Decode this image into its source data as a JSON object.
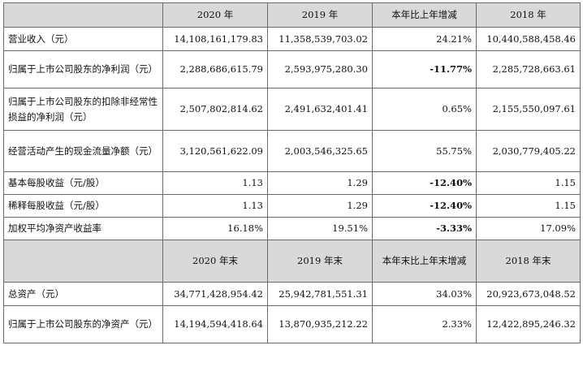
{
  "header1": {
    "corner": "",
    "c1": "2020 年",
    "c2": "2019 年",
    "c3": "本年比上年增减",
    "c4": "2018 年"
  },
  "section1_rows": [
    {
      "label": "营业收入（元）",
      "v2020": "14,108,161,179.83",
      "v2019": "11,358,539,703.02",
      "change": "24.21%",
      "v2018": "10,440,588,458.46"
    },
    {
      "label": "归属于上市公司股东的净利润（元）",
      "v2020": "2,288,686,615.79",
      "v2019": "2,593,975,280.30",
      "change": "-11.77%",
      "v2018": "2,285,728,663.61"
    },
    {
      "label": "归属于上市公司股东的扣除非经常性损益的净利润（元）",
      "v2020": "2,507,802,814.62",
      "v2019": "2,491,632,401.41",
      "change": "0.65%",
      "v2018": "2,155,550,097.61"
    },
    {
      "label": "经营活动产生的现金流量净额（元）",
      "v2020": "3,120,561,622.09",
      "v2019": "2,003,546,325.65",
      "change": "55.75%",
      "v2018": "2,030,779,405.22"
    },
    {
      "label": "基本每股收益（元/股）",
      "v2020": "1.13",
      "v2019": "1.29",
      "change": "-12.40%",
      "v2018": "1.15"
    },
    {
      "label": "稀释每股收益（元/股）",
      "v2020": "1.13",
      "v2019": "1.29",
      "change": "-12.40%",
      "v2018": "1.15"
    },
    {
      "label": "加权平均净资产收益率",
      "v2020": "16.18%",
      "v2019": "19.51%",
      "change": "-3.33%",
      "v2018": "17.09%"
    }
  ],
  "header2": {
    "corner": "",
    "c1": "2020 年末",
    "c2": "2019 年末",
    "c3": "本年末比上年末增减",
    "c4": "2018 年末"
  },
  "section2_rows": [
    {
      "label": "总资产（元）",
      "v2020": "34,771,428,954.42",
      "v2019": "25,942,781,551.31",
      "change": "34.03%",
      "v2018": "20,923,673,048.52"
    },
    {
      "label": "归属于上市公司股东的净资产（元）",
      "v2020": "14,194,594,418.64",
      "v2019": "13,870,935,212.22",
      "change": "2.33%",
      "v2018": "12,422,895,246.32"
    }
  ]
}
